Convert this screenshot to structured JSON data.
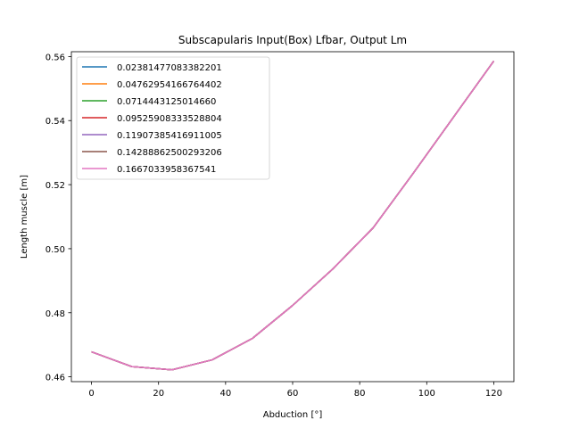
{
  "chart_data": {
    "type": "line",
    "title": "Subscapularis Input(Box) Lfbar, Output Lm",
    "xlabel": "Abduction [°]",
    "ylabel": "Length muscle [m]",
    "xlim": [
      -6,
      126
    ],
    "ylim": [
      0.4585,
      0.5615
    ],
    "xticks": [
      0,
      20,
      40,
      60,
      80,
      100,
      120
    ],
    "xtick_labels": [
      "0",
      "20",
      "40",
      "60",
      "80",
      "100",
      "120"
    ],
    "yticks": [
      0.46,
      0.48,
      0.5,
      0.52,
      0.54,
      0.56
    ],
    "ytick_labels": [
      "0.46",
      "0.48",
      "0.50",
      "0.52",
      "0.54",
      "0.56"
    ],
    "grid": false,
    "legend_position": "upper-left",
    "x": [
      0,
      12,
      24,
      36,
      48,
      60,
      72,
      84,
      96,
      108,
      120
    ],
    "series": [
      {
        "name": "0.02381477083382201",
        "color": "#1f77b4",
        "values": [
          0.4678,
          0.4632,
          0.4622,
          0.4653,
          0.472,
          0.4823,
          0.4937,
          0.5065,
          0.5236,
          0.5411,
          0.5586
        ]
      },
      {
        "name": "0.04762954166764402",
        "color": "#ff7f0e",
        "values": [
          0.4678,
          0.4632,
          0.4622,
          0.4653,
          0.472,
          0.4823,
          0.4937,
          0.5065,
          0.5236,
          0.5411,
          0.5586
        ]
      },
      {
        "name": "0.0714443125014660",
        "color": "#2ca02c",
        "values": [
          0.4678,
          0.4632,
          0.4622,
          0.4653,
          0.472,
          0.4823,
          0.4937,
          0.5065,
          0.5236,
          0.5411,
          0.5586
        ]
      },
      {
        "name": "0.09525908333528804",
        "color": "#d62728",
        "values": [
          0.4678,
          0.4632,
          0.4622,
          0.4653,
          0.472,
          0.4823,
          0.4937,
          0.5065,
          0.5236,
          0.5411,
          0.5586
        ]
      },
      {
        "name": "0.11907385416911005",
        "color": "#9467bd",
        "values": [
          0.4678,
          0.4632,
          0.4622,
          0.4653,
          0.472,
          0.4823,
          0.4937,
          0.5065,
          0.5236,
          0.5411,
          0.5586
        ]
      },
      {
        "name": "0.14288862500293206",
        "color": "#8c564b",
        "values": [
          0.4678,
          0.4632,
          0.4622,
          0.4653,
          0.472,
          0.4823,
          0.4937,
          0.5065,
          0.5236,
          0.5411,
          0.5586
        ]
      },
      {
        "name": "0.1667033958367541",
        "color": "#e377c2",
        "values": [
          0.4678,
          0.4632,
          0.4622,
          0.4653,
          0.472,
          0.4823,
          0.4937,
          0.5065,
          0.5236,
          0.5411,
          0.5586
        ]
      }
    ]
  }
}
